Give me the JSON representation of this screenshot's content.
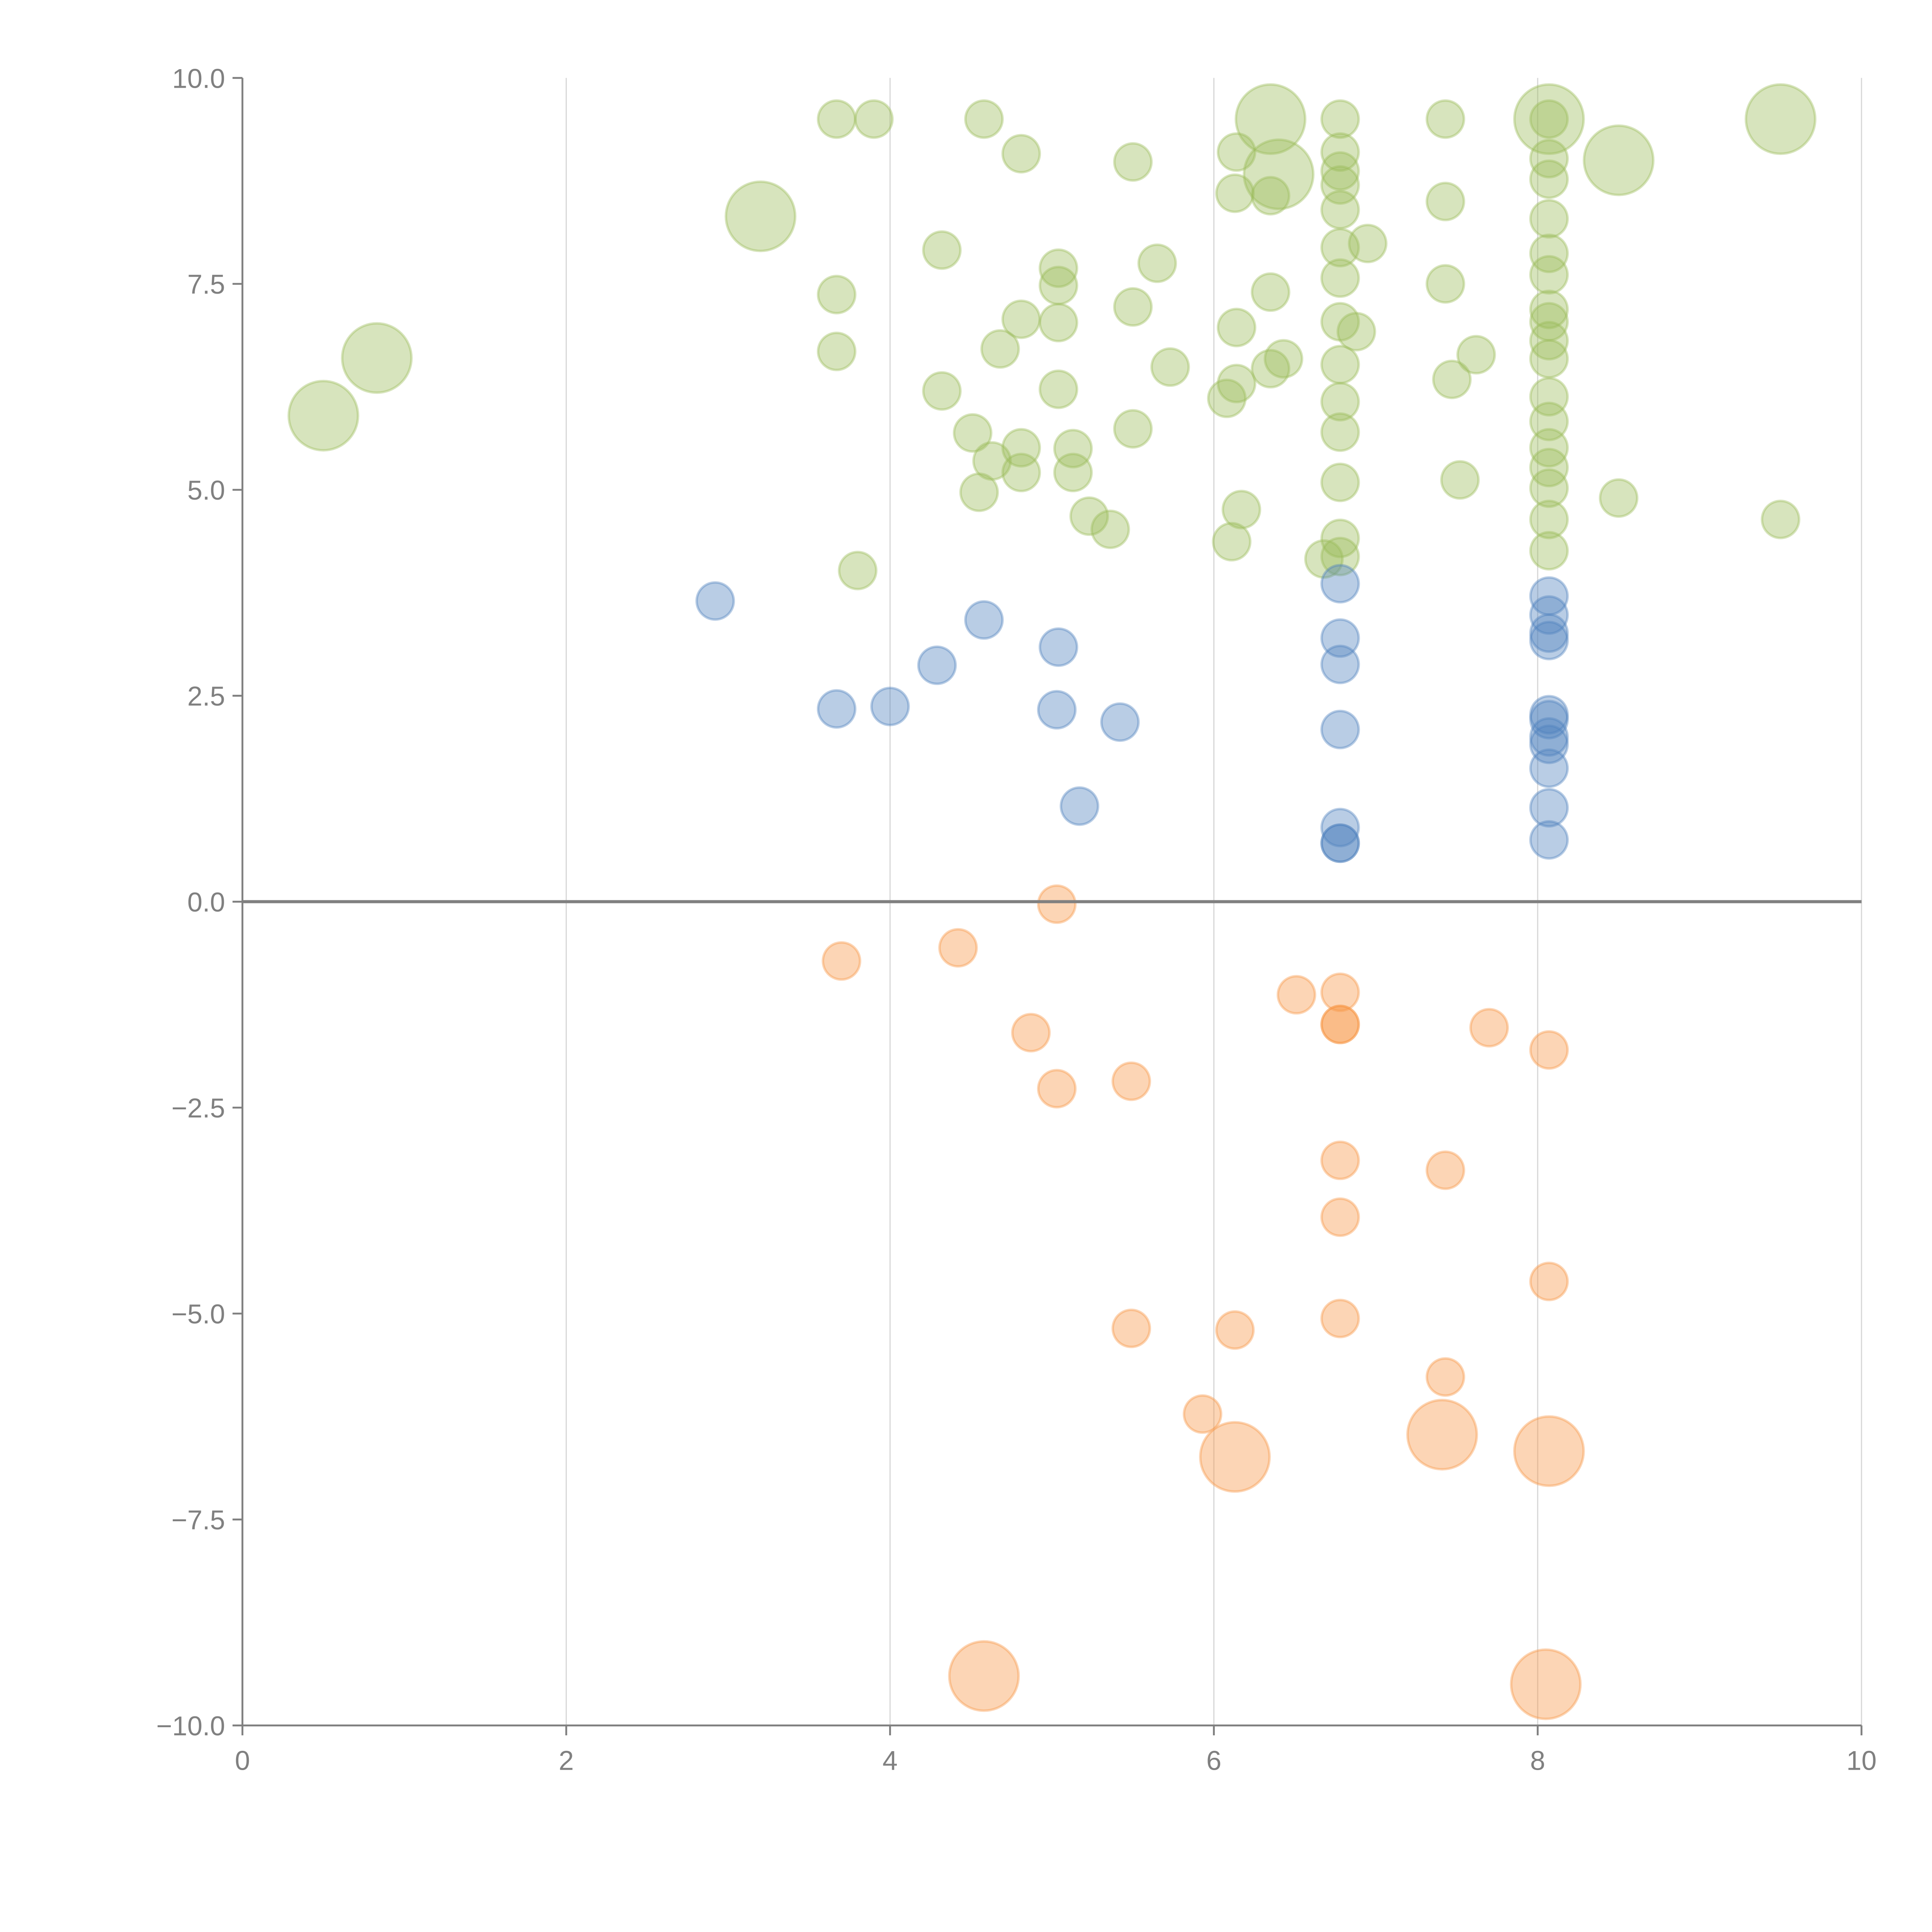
{
  "chart_data": {
    "type": "scatter",
    "title": "",
    "xlabel": "",
    "ylabel": "",
    "xlim": [
      0,
      10
    ],
    "ylim": [
      -10,
      10
    ],
    "grid": "vertical",
    "x_ticks": [
      "0",
      "2",
      "4",
      "6",
      "8",
      "10"
    ],
    "y_ticks": [
      "10.0",
      "7.5",
      "5.0",
      "2.5",
      "0.0",
      "−2.5",
      "−5.0",
      "−7.5",
      "−10.0"
    ],
    "colors": {
      "green": "#9bbb59",
      "blue": "#4f81bd",
      "orange": "#f79646",
      "axis": "#808080"
    },
    "series": [
      {
        "name": "green",
        "color": "#9bbb59",
        "points": [
          [
            3.67,
            9.5,
            1
          ],
          [
            3.9,
            9.5,
            1
          ],
          [
            4.58,
            9.5,
            1
          ],
          [
            4.81,
            9.08,
            1
          ],
          [
            5.5,
            8.98,
            1
          ],
          [
            6.14,
            9.1,
            1
          ],
          [
            6.13,
            8.6,
            1
          ],
          [
            6.35,
            8.57,
            1
          ],
          [
            6.78,
            9.5,
            1
          ],
          [
            6.78,
            9.1,
            1
          ],
          [
            6.78,
            8.87,
            1
          ],
          [
            6.78,
            8.7,
            1
          ],
          [
            6.78,
            8.4,
            1
          ],
          [
            6.78,
            7.94,
            1
          ],
          [
            6.78,
            7.57,
            1
          ],
          [
            6.78,
            7.04,
            1
          ],
          [
            6.88,
            6.92,
            1
          ],
          [
            6.78,
            6.52,
            1
          ],
          [
            6.78,
            6.07,
            1
          ],
          [
            6.78,
            5.7,
            1
          ],
          [
            6.78,
            5.09,
            1
          ],
          [
            6.78,
            4.41,
            1
          ],
          [
            6.78,
            4.19,
            1
          ],
          [
            6.68,
            4.16,
            1
          ],
          [
            6.95,
            7.99,
            1
          ],
          [
            7.43,
            9.5,
            1
          ],
          [
            7.43,
            8.5,
            1
          ],
          [
            7.43,
            7.5,
            1
          ],
          [
            7.47,
            6.34,
            1
          ],
          [
            7.62,
            6.64,
            1
          ],
          [
            7.52,
            5.12,
            1
          ],
          [
            8.07,
            9.5,
            1
          ],
          [
            8.07,
            9.02,
            1
          ],
          [
            8.07,
            8.77,
            1
          ],
          [
            8.07,
            8.29,
            1
          ],
          [
            8.07,
            7.87,
            1
          ],
          [
            8.07,
            7.61,
            1
          ],
          [
            8.07,
            7.19,
            1
          ],
          [
            8.07,
            7.04,
            1
          ],
          [
            8.07,
            6.81,
            1
          ],
          [
            8.07,
            6.59,
            1
          ],
          [
            8.07,
            6.13,
            1
          ],
          [
            8.07,
            5.83,
            1
          ],
          [
            8.07,
            5.51,
            1
          ],
          [
            8.07,
            5.27,
            1
          ],
          [
            8.07,
            5.02,
            1
          ],
          [
            8.07,
            4.64,
            1
          ],
          [
            8.07,
            4.26,
            1
          ],
          [
            8.5,
            4.9,
            1
          ],
          [
            9.5,
            4.64,
            1
          ],
          [
            4.32,
            7.91,
            1
          ],
          [
            3.67,
            7.37,
            1
          ],
          [
            3.67,
            6.68,
            1
          ],
          [
            5.04,
            7.69,
            1
          ],
          [
            5.04,
            7.48,
            1
          ],
          [
            4.81,
            7.07,
            1
          ],
          [
            5.04,
            7.03,
            1
          ],
          [
            4.68,
            6.71,
            1
          ],
          [
            5.5,
            7.22,
            1
          ],
          [
            5.65,
            7.75,
            1
          ],
          [
            5.73,
            6.49,
            1
          ],
          [
            6.14,
            6.97,
            1
          ],
          [
            6.35,
            7.4,
            1
          ],
          [
            6.43,
            6.59,
            1
          ],
          [
            6.35,
            6.47,
            1
          ],
          [
            6.14,
            6.29,
            1
          ],
          [
            6.08,
            6.11,
            1
          ],
          [
            4.32,
            6.2,
            1
          ],
          [
            5.04,
            6.22,
            1
          ],
          [
            4.51,
            5.69,
            1
          ],
          [
            4.81,
            5.51,
            1
          ],
          [
            5.13,
            5.5,
            1
          ],
          [
            5.5,
            5.74,
            1
          ],
          [
            4.63,
            5.35,
            1
          ],
          [
            4.81,
            5.21,
            1
          ],
          [
            5.13,
            5.21,
            1
          ],
          [
            4.55,
            4.97,
            1
          ],
          [
            5.23,
            4.68,
            1
          ],
          [
            5.36,
            4.52,
            1
          ],
          [
            6.17,
            4.76,
            1
          ],
          [
            6.11,
            4.37,
            1
          ],
          [
            3.8,
            4.02,
            1
          ],
          [
            0.5,
            5.9,
            2
          ],
          [
            0.83,
            6.6,
            2
          ],
          [
            3.2,
            8.32,
            2
          ],
          [
            6.35,
            9.5,
            2
          ],
          [
            6.4,
            8.83,
            2
          ],
          [
            8.07,
            9.5,
            2
          ],
          [
            8.5,
            9.0,
            2
          ],
          [
            9.5,
            9.5,
            2
          ]
        ]
      },
      {
        "name": "blue",
        "color": "#4f81bd",
        "points": [
          [
            2.92,
            3.65,
            1
          ],
          [
            4.58,
            3.42,
            1
          ],
          [
            4.29,
            2.87,
            1
          ],
          [
            5.04,
            3.09,
            1
          ],
          [
            3.67,
            2.34,
            1
          ],
          [
            4.0,
            2.37,
            1
          ],
          [
            5.03,
            2.33,
            1
          ],
          [
            5.42,
            2.18,
            1
          ],
          [
            5.17,
            1.16,
            1
          ],
          [
            6.78,
            3.86,
            1
          ],
          [
            6.78,
            3.2,
            1
          ],
          [
            6.78,
            2.88,
            1
          ],
          [
            6.78,
            2.09,
            1
          ],
          [
            6.78,
            0.9,
            1
          ],
          [
            6.78,
            0.71,
            1
          ],
          [
            6.78,
            0.71,
            1
          ],
          [
            8.07,
            3.71,
            1
          ],
          [
            8.07,
            3.48,
            1
          ],
          [
            8.07,
            3.26,
            1
          ],
          [
            8.07,
            3.17,
            1
          ],
          [
            8.07,
            2.27,
            1
          ],
          [
            8.07,
            2.21,
            1
          ],
          [
            8.07,
            2.0,
            1
          ],
          [
            8.07,
            1.91,
            1
          ],
          [
            8.07,
            1.62,
            1
          ],
          [
            8.07,
            1.14,
            1
          ],
          [
            8.07,
            0.75,
            1
          ]
        ]
      },
      {
        "name": "orange",
        "color": "#f79646",
        "points": [
          [
            5.03,
            -0.03,
            1
          ],
          [
            3.7,
            -0.72,
            1
          ],
          [
            4.42,
            -0.56,
            1
          ],
          [
            4.87,
            -1.59,
            1
          ],
          [
            5.03,
            -2.27,
            1
          ],
          [
            5.49,
            -2.18,
            1
          ],
          [
            6.51,
            -1.13,
            1
          ],
          [
            6.78,
            -1.1,
            1
          ],
          [
            6.78,
            -1.49,
            1
          ],
          [
            6.78,
            -1.49,
            1
          ],
          [
            7.7,
            -1.53,
            1
          ],
          [
            8.07,
            -1.8,
            1
          ],
          [
            6.78,
            -3.14,
            1
          ],
          [
            7.43,
            -3.26,
            1
          ],
          [
            6.78,
            -3.83,
            1
          ],
          [
            8.07,
            -4.61,
            1
          ],
          [
            5.49,
            -5.18,
            1
          ],
          [
            6.13,
            -5.2,
            1
          ],
          [
            6.78,
            -5.06,
            1
          ],
          [
            7.43,
            -5.77,
            1
          ],
          [
            5.93,
            -6.22,
            1
          ],
          [
            6.13,
            -6.74,
            2
          ],
          [
            7.41,
            -6.47,
            2
          ],
          [
            8.07,
            -6.67,
            2
          ],
          [
            4.58,
            -9.4,
            2
          ],
          [
            8.05,
            -9.5,
            2
          ]
        ]
      }
    ]
  }
}
